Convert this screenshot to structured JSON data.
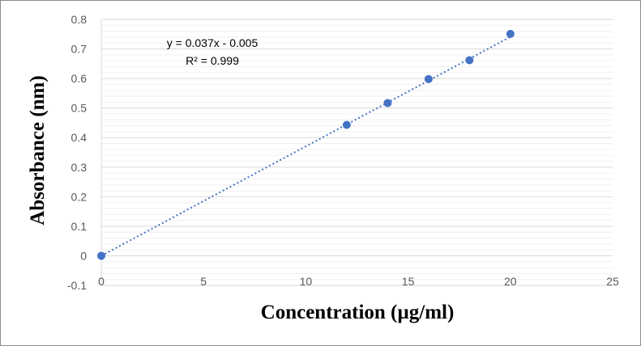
{
  "chart_data": {
    "type": "scatter",
    "title": "",
    "xlabel": "Concentration (µg/ml)",
    "ylabel": "Absorbance (nm)",
    "xlim": [
      0,
      25
    ],
    "ylim": [
      -0.1,
      0.8
    ],
    "xticks": [
      0,
      5,
      10,
      15,
      20,
      25
    ],
    "yticks": [
      -0.1,
      0,
      0.1,
      0.2,
      0.3,
      0.4,
      0.5,
      0.6,
      0.7,
      0.8
    ],
    "grid": "horizontal major and minor",
    "points": {
      "x": [
        0,
        12,
        14,
        16,
        18,
        20
      ],
      "y": [
        0,
        0.443,
        0.517,
        0.598,
        0.662,
        0.751
      ]
    },
    "trendline": {
      "type": "linear",
      "slope": 0.037,
      "intercept": -0.005,
      "style": "dotted"
    },
    "annotations": {
      "equation": "y = 0.037x - 0.005",
      "r2": "R² = 0.999"
    },
    "colors": {
      "marker": "#4472C4",
      "trendline": "#4472C4",
      "grid_major": "#d9d9d9",
      "grid_minor": "#f0f0f0"
    }
  }
}
